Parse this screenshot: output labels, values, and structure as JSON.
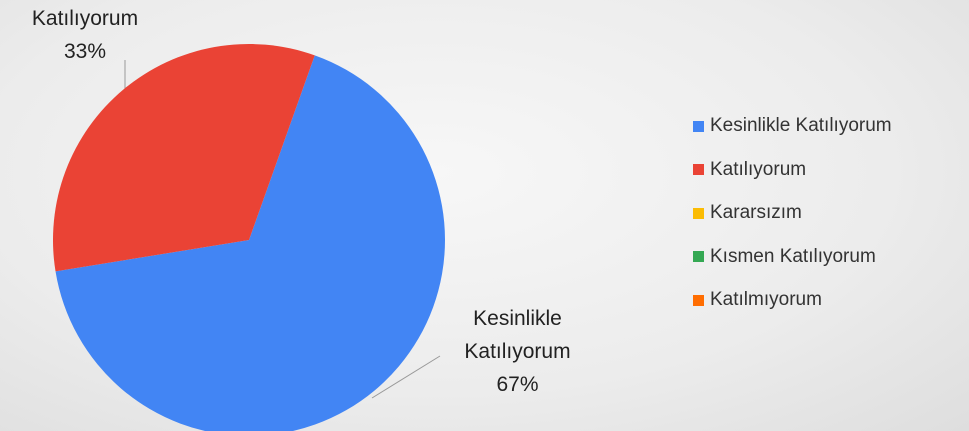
{
  "chart_data": {
    "type": "pie",
    "categories": [
      "Kesinlikle Katılıyorum",
      "Katılıyorum",
      "Kararsızım",
      "Kısmen Katılıyorum",
      "Katılmıyorum"
    ],
    "values": [
      67,
      33,
      0,
      0,
      0
    ],
    "value_labels": [
      "67%",
      "33%",
      null,
      null,
      null
    ],
    "colors": [
      "#4285f4",
      "#ea4335",
      "#fbbc04",
      "#34a853",
      "#ff6d01"
    ],
    "legend": "right"
  }
}
